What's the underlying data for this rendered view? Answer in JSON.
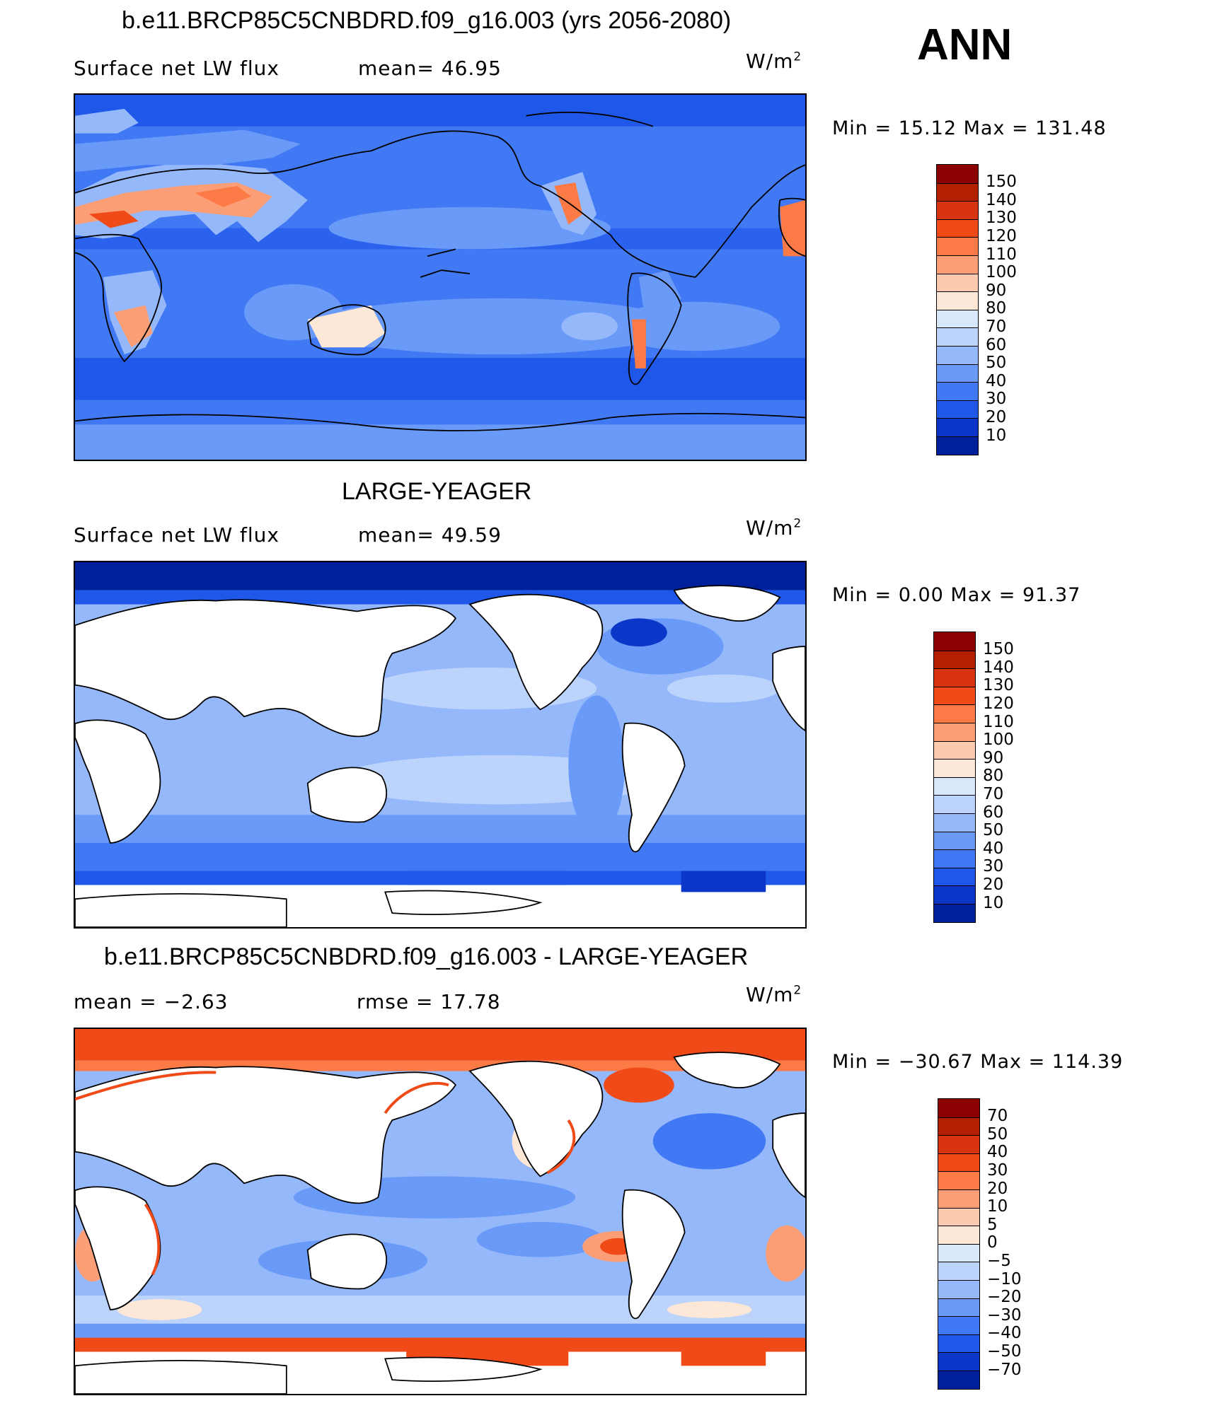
{
  "header": {
    "season": "ANN"
  },
  "panels": [
    {
      "title": "b.e11.BRCP85C5CNBDRD.f09_g16.003 (yrs 2056-2080)",
      "left_label": "Surface net LW flux",
      "mid_label": "mean=  46.95",
      "unit": "W/m",
      "unit_sup": "2",
      "minmax": "Min =   15.12 Max = 131.48",
      "colorbar": {
        "labels": [
          "150",
          "140",
          "130",
          "120",
          "110",
          "100",
          "90",
          "80",
          "70",
          "60",
          "50",
          "40",
          "30",
          "20",
          "10"
        ],
        "colors": [
          "#8b0000",
          "#b22000",
          "#d83410",
          "#f04a18",
          "#fb7a46",
          "#fc9f77",
          "#fdcab0",
          "#fde8d8",
          "#d8e8fb",
          "#bcd4fb",
          "#94b8fa",
          "#6a9af7",
          "#4178f4",
          "#1f58e8",
          "#0b36c8",
          "#001f9a"
        ]
      },
      "map_kind": "model"
    },
    {
      "title": "LARGE-YEAGER",
      "left_label": "Surface net LW flux",
      "mid_label": "mean=  49.59",
      "unit": "W/m",
      "unit_sup": "2",
      "minmax": "Min =    0.00 Max =   91.37",
      "colorbar": {
        "labels": [
          "150",
          "140",
          "130",
          "120",
          "110",
          "100",
          "90",
          "80",
          "70",
          "60",
          "50",
          "40",
          "30",
          "20",
          "10"
        ],
        "colors": [
          "#8b0000",
          "#b22000",
          "#d83410",
          "#f04a18",
          "#fb7a46",
          "#fc9f77",
          "#fdcab0",
          "#fde8d8",
          "#d8e8fb",
          "#bcd4fb",
          "#94b8fa",
          "#6a9af7",
          "#4178f4",
          "#1f58e8",
          "#0b36c8",
          "#001f9a"
        ]
      },
      "map_kind": "obs"
    },
    {
      "title": "b.e11.BRCP85C5CNBDRD.f09_g16.003 - LARGE-YEAGER",
      "left_label": "mean =  −2.63",
      "mid_label": "rmse =   17.78",
      "unit": "W/m",
      "unit_sup": "2",
      "minmax": "Min = −30.67 Max = 114.39",
      "colorbar": {
        "labels": [
          "70",
          "50",
          "40",
          "30",
          "20",
          "10",
          "5",
          "0",
          "−5",
          "−10",
          "−20",
          "−30",
          "−40",
          "−50",
          "−70"
        ],
        "colors": [
          "#8b0000",
          "#b22000",
          "#d83410",
          "#f04a18",
          "#fb7a46",
          "#fc9f77",
          "#fdcab0",
          "#fde8d8",
          "#d8e8fb",
          "#bcd4fb",
          "#94b8fa",
          "#6a9af7",
          "#4178f4",
          "#1f58e8",
          "#0b36c8",
          "#001f9a"
        ]
      },
      "map_kind": "diff"
    }
  ]
}
